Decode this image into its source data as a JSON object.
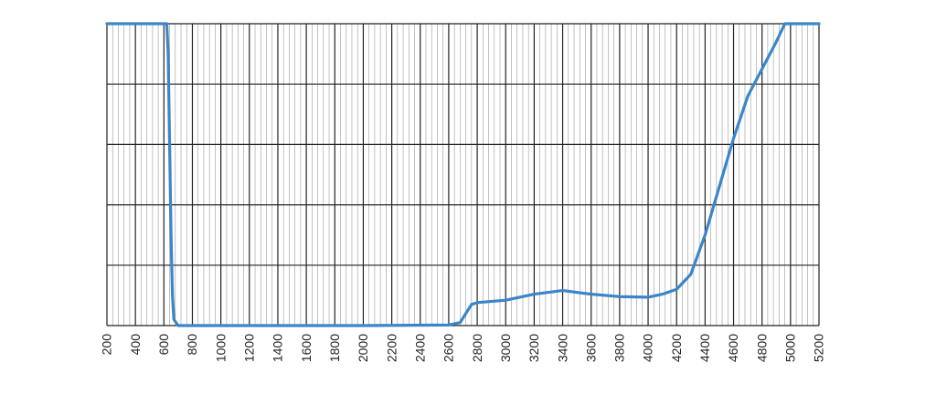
{
  "chart_data": {
    "type": "line",
    "title": "",
    "xlabel": "",
    "ylabel": "",
    "xlim": [
      200,
      5200
    ],
    "ylim": [
      0,
      5
    ],
    "grid": true,
    "x_tick_labels": [
      "200",
      "400",
      "600",
      "800",
      "1000",
      "1200",
      "1400",
      "1600",
      "1800",
      "2000",
      "2200",
      "2400",
      "2600",
      "2800",
      "3000",
      "3200",
      "3400",
      "3600",
      "3800",
      "4000",
      "4200",
      "4400",
      "4600",
      "4800",
      "5000",
      "5200"
    ],
    "series": [
      {
        "color": "#3a86c8",
        "x": [
          200,
          620,
          630,
          640,
          650,
          660,
          670,
          700,
          1000,
          2000,
          2600,
          2680,
          2720,
          2760,
          2800,
          3000,
          3200,
          3400,
          3600,
          3800,
          4000,
          4100,
          4200,
          4300,
          4400,
          4500,
          4600,
          4700,
          4800,
          4900,
          4960,
          5000,
          5200
        ],
        "y": [
          5,
          5,
          4.5,
          3.0,
          1.5,
          0.5,
          0.1,
          0,
          0,
          0,
          0.01,
          0.05,
          0.2,
          0.35,
          0.38,
          0.42,
          0.52,
          0.58,
          0.52,
          0.48,
          0.47,
          0.52,
          0.6,
          0.85,
          1.5,
          2.3,
          3.1,
          3.8,
          4.25,
          4.7,
          5,
          5,
          5
        ]
      }
    ]
  }
}
